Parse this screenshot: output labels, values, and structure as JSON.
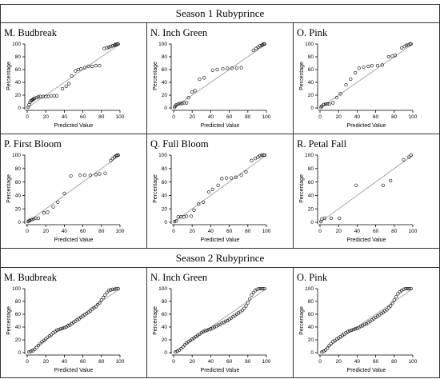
{
  "figure": {
    "season_titles": [
      "Season 1 Rubyprince",
      "Season 2 Rubyprince"
    ]
  },
  "axes": {
    "xlabel": "Predicted Value",
    "ylabel": "Percentage",
    "xticks": [
      0,
      20,
      40,
      60,
      80,
      100
    ],
    "yticks": [
      0,
      20,
      40,
      60,
      80,
      100
    ],
    "xlim": [
      0,
      100
    ],
    "ylim": [
      0,
      100
    ]
  },
  "colors": {
    "points": "#000000",
    "reference_line": "#a0a0a0",
    "border": "#333333"
  },
  "chart_data": [
    {
      "type": "scatter",
      "title": "M. Budbreak",
      "season": 1,
      "reference_line": "y = x",
      "points": [
        [
          1,
          1
        ],
        [
          2,
          5
        ],
        [
          3,
          9
        ],
        [
          4,
          11
        ],
        [
          5,
          12
        ],
        [
          6,
          13
        ],
        [
          7,
          14
        ],
        [
          8,
          15
        ],
        [
          10,
          16
        ],
        [
          12,
          17
        ],
        [
          14,
          18
        ],
        [
          17,
          18
        ],
        [
          20,
          18
        ],
        [
          23,
          18
        ],
        [
          26,
          19
        ],
        [
          29,
          19
        ],
        [
          32,
          19
        ],
        [
          38,
          30
        ],
        [
          42,
          34
        ],
        [
          45,
          38
        ],
        [
          48,
          50
        ],
        [
          52,
          58
        ],
        [
          55,
          60
        ],
        [
          58,
          61
        ],
        [
          62,
          63
        ],
        [
          66,
          65
        ],
        [
          70,
          65
        ],
        [
          74,
          66
        ],
        [
          78,
          66
        ],
        [
          83,
          93
        ],
        [
          86,
          94
        ],
        [
          88,
          95
        ],
        [
          90,
          96
        ],
        [
          92,
          97
        ],
        [
          94,
          98
        ],
        [
          95,
          99
        ],
        [
          96,
          99
        ],
        [
          97,
          100
        ],
        [
          98,
          100
        ]
      ]
    },
    {
      "type": "scatter",
      "title": "N. Inch Green",
      "season": 1,
      "reference_line": "y = x",
      "points": [
        [
          1,
          1
        ],
        [
          2,
          3
        ],
        [
          3,
          5
        ],
        [
          5,
          6
        ],
        [
          7,
          7
        ],
        [
          9,
          7
        ],
        [
          11,
          8
        ],
        [
          14,
          8
        ],
        [
          16,
          16
        ],
        [
          20,
          25
        ],
        [
          23,
          27
        ],
        [
          28,
          45
        ],
        [
          33,
          47
        ],
        [
          42,
          59
        ],
        [
          47,
          60
        ],
        [
          53,
          61
        ],
        [
          58,
          62
        ],
        [
          63,
          62
        ],
        [
          68,
          62
        ],
        [
          73,
          63
        ],
        [
          86,
          90
        ],
        [
          89,
          93
        ],
        [
          91,
          95
        ],
        [
          93,
          97
        ],
        [
          95,
          98
        ],
        [
          96,
          99
        ],
        [
          97,
          100
        ],
        [
          98,
          100
        ]
      ]
    },
    {
      "type": "scatter",
      "title": "O. Pink",
      "season": 1,
      "reference_line": "y = x",
      "points": [
        [
          1,
          1
        ],
        [
          2,
          3
        ],
        [
          4,
          5
        ],
        [
          6,
          6
        ],
        [
          8,
          6
        ],
        [
          10,
          6
        ],
        [
          14,
          8
        ],
        [
          18,
          16
        ],
        [
          22,
          22
        ],
        [
          28,
          36
        ],
        [
          33,
          45
        ],
        [
          38,
          55
        ],
        [
          42,
          62
        ],
        [
          47,
          64
        ],
        [
          52,
          65
        ],
        [
          56,
          66
        ],
        [
          62,
          66
        ],
        [
          67,
          67
        ],
        [
          74,
          80
        ],
        [
          78,
          81
        ],
        [
          81,
          82
        ],
        [
          88,
          94
        ],
        [
          91,
          96
        ],
        [
          93,
          98
        ],
        [
          95,
          99
        ],
        [
          97,
          100
        ],
        [
          98,
          100
        ]
      ]
    },
    {
      "type": "scatter",
      "title": "P. First Bloom",
      "season": 1,
      "reference_line": "y = x",
      "points": [
        [
          1,
          1
        ],
        [
          2,
          2
        ],
        [
          3,
          3
        ],
        [
          5,
          4
        ],
        [
          7,
          5
        ],
        [
          9,
          6
        ],
        [
          12,
          6
        ],
        [
          18,
          14
        ],
        [
          22,
          15
        ],
        [
          28,
          23
        ],
        [
          33,
          30
        ],
        [
          40,
          43
        ],
        [
          47,
          69
        ],
        [
          57,
          70
        ],
        [
          62,
          70
        ],
        [
          68,
          70
        ],
        [
          74,
          71
        ],
        [
          78,
          72
        ],
        [
          84,
          73
        ],
        [
          90,
          92
        ],
        [
          92,
          95
        ],
        [
          94,
          97
        ],
        [
          96,
          99
        ],
        [
          97,
          100
        ],
        [
          98,
          100
        ]
      ]
    },
    {
      "type": "scatter",
      "title": "Q. Full Bloom",
      "season": 1,
      "reference_line": "y = x",
      "points": [
        [
          1,
          1
        ],
        [
          3,
          2
        ],
        [
          5,
          8
        ],
        [
          8,
          8
        ],
        [
          11,
          8
        ],
        [
          14,
          9
        ],
        [
          19,
          9
        ],
        [
          22,
          18
        ],
        [
          27,
          27
        ],
        [
          32,
          30
        ],
        [
          38,
          45
        ],
        [
          42,
          49
        ],
        [
          48,
          55
        ],
        [
          52,
          65
        ],
        [
          57,
          66
        ],
        [
          62,
          66
        ],
        [
          67,
          67
        ],
        [
          73,
          70
        ],
        [
          78,
          75
        ],
        [
          84,
          92
        ],
        [
          88,
          95
        ],
        [
          91,
          97
        ],
        [
          93,
          99
        ],
        [
          95,
          100
        ],
        [
          97,
          100
        ],
        [
          98,
          100
        ]
      ]
    },
    {
      "type": "scatter",
      "title": "R. Petal Fall",
      "season": 1,
      "reference_line": "y = x",
      "points": [
        [
          1,
          1
        ],
        [
          2,
          5
        ],
        [
          5,
          6
        ],
        [
          12,
          6
        ],
        [
          21,
          6
        ],
        [
          39,
          55
        ],
        [
          68,
          55
        ],
        [
          76,
          62
        ],
        [
          90,
          93
        ],
        [
          96,
          97
        ],
        [
          98,
          100
        ]
      ]
    },
    {
      "type": "scatter",
      "title": "M. Budbreak",
      "season": 2,
      "reference_line": "y = x",
      "points": [
        [
          2,
          1
        ],
        [
          4,
          2
        ],
        [
          6,
          3
        ],
        [
          8,
          5
        ],
        [
          10,
          8
        ],
        [
          12,
          11
        ],
        [
          14,
          14
        ],
        [
          16,
          17
        ],
        [
          18,
          19
        ],
        [
          20,
          21
        ],
        [
          22,
          24
        ],
        [
          24,
          26
        ],
        [
          26,
          28
        ],
        [
          28,
          31
        ],
        [
          30,
          33
        ],
        [
          32,
          35
        ],
        [
          34,
          36
        ],
        [
          36,
          37
        ],
        [
          38,
          38
        ],
        [
          40,
          39
        ],
        [
          42,
          40
        ],
        [
          44,
          42
        ],
        [
          46,
          43
        ],
        [
          48,
          45
        ],
        [
          50,
          47
        ],
        [
          52,
          49
        ],
        [
          54,
          51
        ],
        [
          56,
          53
        ],
        [
          58,
          55
        ],
        [
          60,
          57
        ],
        [
          62,
          59
        ],
        [
          64,
          61
        ],
        [
          66,
          63
        ],
        [
          68,
          65
        ],
        [
          70,
          68
        ],
        [
          72,
          70
        ],
        [
          74,
          72
        ],
        [
          76,
          75
        ],
        [
          78,
          78
        ],
        [
          80,
          82
        ],
        [
          82,
          86
        ],
        [
          84,
          90
        ],
        [
          86,
          94
        ],
        [
          88,
          97
        ],
        [
          90,
          98
        ],
        [
          92,
          99
        ],
        [
          94,
          99
        ],
        [
          96,
          100
        ],
        [
          98,
          100
        ]
      ]
    },
    {
      "type": "scatter",
      "title": "N. Inch Green",
      "season": 2,
      "reference_line": "y = x",
      "points": [
        [
          2,
          1
        ],
        [
          4,
          2
        ],
        [
          6,
          4
        ],
        [
          8,
          6
        ],
        [
          10,
          9
        ],
        [
          12,
          12
        ],
        [
          14,
          15
        ],
        [
          16,
          17
        ],
        [
          18,
          19
        ],
        [
          20,
          21
        ],
        [
          22,
          23
        ],
        [
          24,
          25
        ],
        [
          26,
          27
        ],
        [
          28,
          29
        ],
        [
          30,
          31
        ],
        [
          32,
          33
        ],
        [
          34,
          34
        ],
        [
          36,
          35
        ],
        [
          38,
          36
        ],
        [
          40,
          37
        ],
        [
          42,
          38
        ],
        [
          44,
          40
        ],
        [
          46,
          41
        ],
        [
          48,
          43
        ],
        [
          50,
          44
        ],
        [
          52,
          46
        ],
        [
          54,
          47
        ],
        [
          56,
          49
        ],
        [
          58,
          50
        ],
        [
          60,
          52
        ],
        [
          62,
          54
        ],
        [
          64,
          56
        ],
        [
          66,
          58
        ],
        [
          68,
          60
        ],
        [
          70,
          62
        ],
        [
          72,
          64
        ],
        [
          74,
          66
        ],
        [
          76,
          69
        ],
        [
          78,
          73
        ],
        [
          80,
          78
        ],
        [
          82,
          84
        ],
        [
          84,
          90
        ],
        [
          86,
          94
        ],
        [
          88,
          97
        ],
        [
          90,
          99
        ],
        [
          92,
          100
        ],
        [
          94,
          100
        ],
        [
          96,
          100
        ],
        [
          98,
          100
        ]
      ]
    },
    {
      "type": "scatter",
      "title": "O. Pink",
      "season": 2,
      "reference_line": "y = x",
      "points": [
        [
          2,
          1
        ],
        [
          4,
          2
        ],
        [
          6,
          4
        ],
        [
          8,
          7
        ],
        [
          10,
          11
        ],
        [
          12,
          14
        ],
        [
          14,
          17
        ],
        [
          16,
          19
        ],
        [
          18,
          21
        ],
        [
          20,
          23
        ],
        [
          22,
          25
        ],
        [
          24,
          27
        ],
        [
          26,
          29
        ],
        [
          28,
          31
        ],
        [
          30,
          33
        ],
        [
          32,
          34
        ],
        [
          34,
          35
        ],
        [
          36,
          36
        ],
        [
          38,
          37
        ],
        [
          40,
          38
        ],
        [
          42,
          39
        ],
        [
          44,
          41
        ],
        [
          46,
          42
        ],
        [
          48,
          44
        ],
        [
          50,
          45
        ],
        [
          52,
          47
        ],
        [
          54,
          49
        ],
        [
          56,
          51
        ],
        [
          58,
          53
        ],
        [
          60,
          55
        ],
        [
          62,
          57
        ],
        [
          64,
          59
        ],
        [
          66,
          61
        ],
        [
          68,
          63
        ],
        [
          70,
          65
        ],
        [
          72,
          67
        ],
        [
          74,
          70
        ],
        [
          76,
          73
        ],
        [
          78,
          77
        ],
        [
          80,
          82
        ],
        [
          82,
          87
        ],
        [
          84,
          92
        ],
        [
          86,
          95
        ],
        [
          88,
          97
        ],
        [
          90,
          99
        ],
        [
          92,
          100
        ],
        [
          94,
          100
        ],
        [
          96,
          100
        ],
        [
          98,
          100
        ]
      ]
    }
  ]
}
